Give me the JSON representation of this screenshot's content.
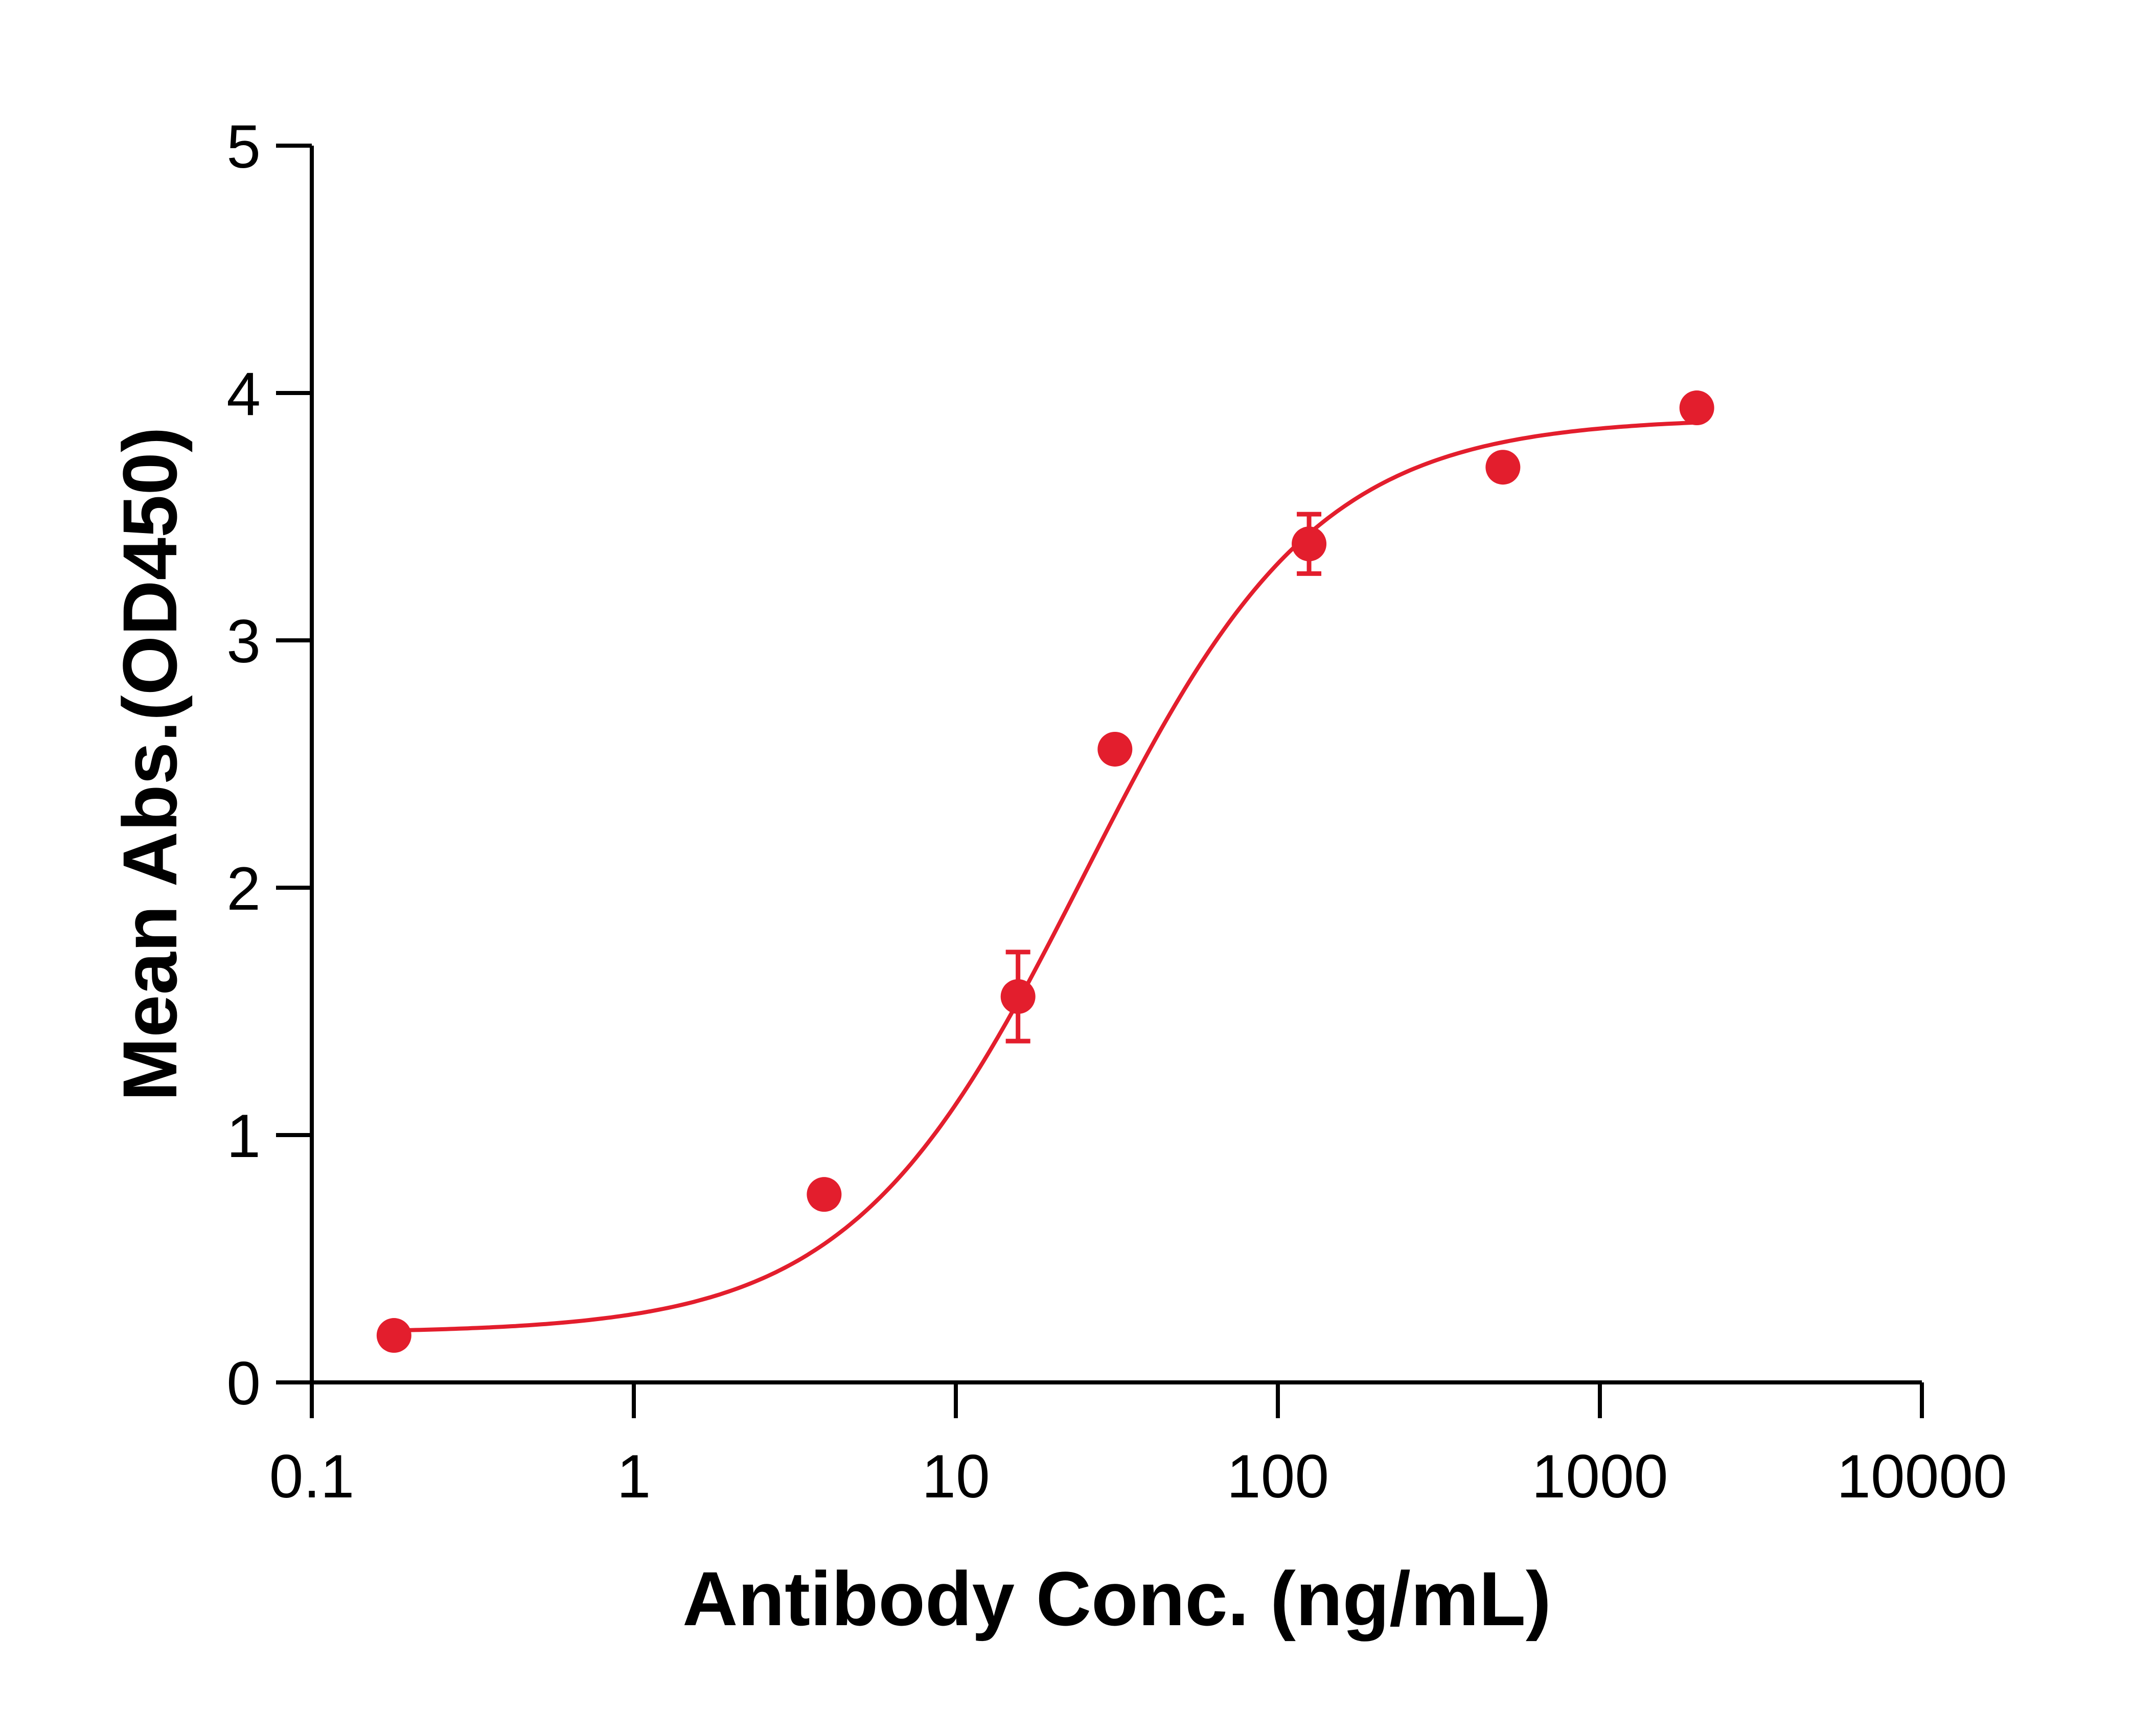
{
  "chart_data": {
    "type": "scatter",
    "xlabel": "Antibody Conc. (ng/mL)",
    "ylabel": "Mean Abs.(OD450)",
    "x_scale": "log",
    "xlim": [
      0.1,
      10000
    ],
    "ylim": [
      0,
      5
    ],
    "x_ticks": [
      0.1,
      1,
      10,
      100,
      1000,
      10000
    ],
    "x_tick_labels": [
      "0.1",
      "1",
      "10",
      "100",
      "1000",
      "10000"
    ],
    "y_ticks": [
      0,
      1,
      2,
      3,
      4,
      5
    ],
    "y_tick_labels": [
      "0",
      "1",
      "2",
      "3",
      "4",
      "5"
    ],
    "grid": false,
    "color": "#e31e2d",
    "series": [
      {
        "points": [
          {
            "x": 0.18,
            "y": 0.19,
            "err": 0.0
          },
          {
            "x": 3.9,
            "y": 0.76,
            "err": 0.0
          },
          {
            "x": 15.6,
            "y": 1.56,
            "err": 0.18
          },
          {
            "x": 31.2,
            "y": 2.56,
            "err": 0.0
          },
          {
            "x": 125,
            "y": 3.39,
            "err": 0.12
          },
          {
            "x": 500,
            "y": 3.7,
            "err": 0.0
          },
          {
            "x": 2000,
            "y": 3.94,
            "err": 0.0
          }
        ],
        "fit": {
          "bottom": 0.2,
          "top": 3.9,
          "ec50": 25,
          "hill": 1.2
        }
      }
    ]
  }
}
